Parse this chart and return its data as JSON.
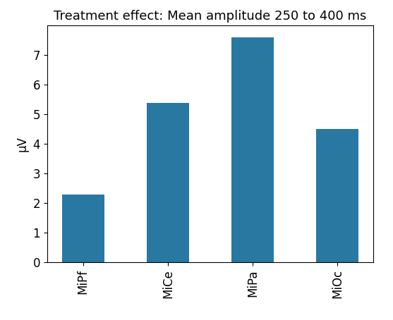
{
  "title": "Treatment effect: Mean amplitude 250 to 400 ms",
  "categories": [
    "MiPf",
    "MiCe",
    "MiPa",
    "MiOc"
  ],
  "values": [
    2.3,
    5.4,
    7.6,
    4.5
  ],
  "bar_color": "#2878a2",
  "ylabel": "μV",
  "ylim": [
    0,
    8.0
  ],
  "yticks": [
    0,
    1,
    2,
    3,
    4,
    5,
    6,
    7
  ],
  "title_fontsize": 13,
  "ylabel_fontsize": 12,
  "tick_fontsize": 12,
  "bar_width": 0.5,
  "background_color": "#ffffff"
}
